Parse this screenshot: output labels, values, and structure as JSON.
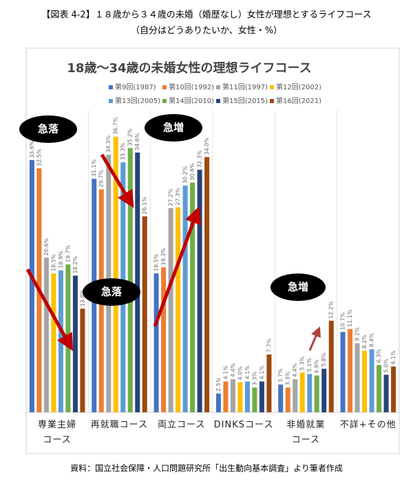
{
  "header": {
    "title": "【図表 4-2】１８歳から３４歳の未婚（婚歴なし）女性が理想とするライフコース",
    "subtitle": "（自分はどうありたいか、女性・%）"
  },
  "chart_data": {
    "type": "bar",
    "title": "18歳～34歳の未婚女性の理想ライフコース",
    "categories": [
      "専業主婦\nコース",
      "再就職コース",
      "両立コース",
      "DINKSコース",
      "非婚就業\nコース",
      "不詳+その他"
    ],
    "ylim": [
      0,
      40
    ],
    "series": [
      {
        "name": "第9回(1987)",
        "color": "#4472c4",
        "values": [
          33.6,
          31.1,
          18.5,
          2.5,
          3.7,
          10.7
        ],
        "value_labels": [
          "33.6%",
          "31.1%",
          "18.5%",
          "2.5%",
          "3.7%",
          "10.7%"
        ]
      },
      {
        "name": "第10回(1992)",
        "color": "#ed7d31",
        "values": [
          32.5,
          29.7,
          19.3,
          4.1,
          3.3,
          11.1
        ],
        "value_labels": [
          "32.5%",
          "29.7%",
          "19.3%",
          "4.1%",
          "3.3%",
          "11.1%"
        ]
      },
      {
        "name": "第11回(1997)",
        "color": "#a5a5a5",
        "values": [
          20.6,
          34.3,
          27.2,
          4.4,
          4.4,
          9.2
        ],
        "value_labels": [
          "20.6%",
          "34.3%",
          "27.2%",
          "4.4%",
          "4.4%",
          "9.2%"
        ]
      },
      {
        "name": "第12回(2002)",
        "color": "#ffc000",
        "values": [
          18.5,
          36.7,
          27.3,
          4.0,
          5.3,
          8.2
        ],
        "value_labels": [
          "18.5%",
          "36.7%",
          "27.3%",
          "4.0%",
          "5.3%",
          "8.2%"
        ]
      },
      {
        "name": "第13回(2005)",
        "color": "#5b9bd5",
        "values": [
          18.9,
          33.3,
          30.2,
          4.1,
          5.1,
          8.4
        ],
        "value_labels": [
          "18.9%",
          "33.3%",
          "30.2%",
          "4.1%",
          "5.1%",
          "8.4%"
        ]
      },
      {
        "name": "第14回(2010)",
        "color": "#70ad47",
        "values": [
          19.7,
          35.2,
          30.6,
          3.3,
          4.9,
          6.3
        ],
        "value_labels": [
          "19.7%",
          "35.2%",
          "30.6%",
          "3.3%",
          "4.9%",
          "6.3%"
        ]
      },
      {
        "name": "第15回(2015)",
        "color": "#264478",
        "values": [
          18.2,
          34.6,
          32.3,
          4.1,
          5.8,
          5.0
        ],
        "value_labels": [
          "18.2%",
          "34.6%",
          "32.3%",
          "4.1%",
          "5.8%",
          "5.0%"
        ]
      },
      {
        "name": "第16回(2021)",
        "color": "#9e480e",
        "values": [
          13.8,
          26.1,
          34.0,
          7.7,
          12.2,
          6.1
        ],
        "value_labels": [
          "13.8%",
          "26.1%",
          "34.0%",
          "7.7%",
          "12.2%",
          "6.1%"
        ]
      }
    ],
    "annotations": [
      "急落",
      "急落",
      "急増",
      "急増"
    ]
  },
  "source": "資料：国立社会保障・人口問題研究所「出生動向基本調査」より筆者作成"
}
